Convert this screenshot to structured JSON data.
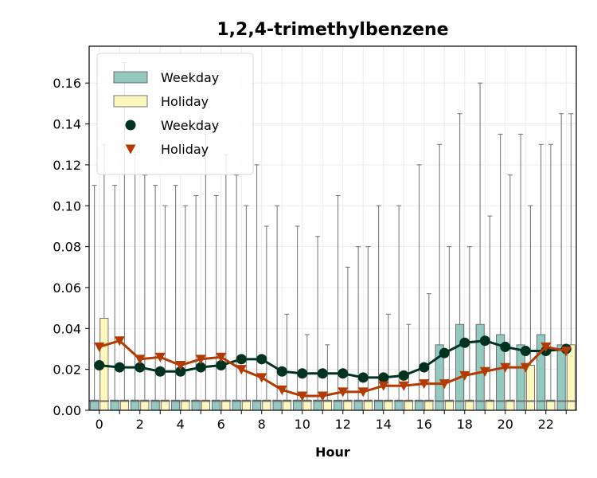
{
  "chart_data": {
    "type": "bar",
    "title": "1,2,4-trimethylbenzene",
    "xlabel": "Hour",
    "ylabel": "",
    "xlim": [
      -0.5,
      23.5
    ],
    "ylim": [
      0,
      0.178
    ],
    "x_ticks": [
      0,
      2,
      4,
      6,
      8,
      10,
      12,
      14,
      16,
      18,
      20,
      22
    ],
    "y_ticks": [
      0.0,
      0.02,
      0.04,
      0.06,
      0.08,
      0.1,
      0.12,
      0.14,
      0.16
    ],
    "y_tick_labels": [
      "0.00",
      "0.02",
      "0.04",
      "0.06",
      "0.08",
      "0.10",
      "0.12",
      "0.14",
      "0.16"
    ],
    "grid": true,
    "legend_position": "top-left",
    "legend": [
      {
        "label": "Weekday",
        "kind": "bar",
        "color": "#93c9bf"
      },
      {
        "label": "Holiday",
        "kind": "bar",
        "color": "#fbf7bd"
      },
      {
        "label": "Weekday",
        "kind": "circle",
        "color": "#00331f"
      },
      {
        "label": "Holiday",
        "kind": "triangle",
        "color": "#b33a00"
      }
    ],
    "colors": {
      "weekday_bar": "#93c9bf",
      "holiday_bar": "#fbf7bd",
      "weekday_line": "#00331f",
      "holiday_line": "#b33a00",
      "whisker": "#6f6f6f"
    },
    "categories": [
      0,
      1,
      2,
      3,
      4,
      5,
      6,
      7,
      8,
      9,
      10,
      11,
      12,
      13,
      14,
      15,
      16,
      17,
      18,
      19,
      20,
      21,
      22,
      23
    ],
    "bar_series": [
      {
        "name": "Weekday",
        "values": [
          0.005,
          0.005,
          0.005,
          0.005,
          0.005,
          0.005,
          0.005,
          0.005,
          0.005,
          0.005,
          0.005,
          0.005,
          0.005,
          0.005,
          0.005,
          0.005,
          0.005,
          0.032,
          0.042,
          0.042,
          0.037,
          0.032,
          0.037,
          0.032
        ],
        "whisker_high": [
          0.11,
          0.11,
          0.125,
          0.11,
          0.11,
          0.105,
          0.105,
          0.115,
          0.12,
          0.1,
          0.09,
          0.085,
          0.105,
          0.08,
          0.1,
          0.1,
          0.12,
          0.13,
          0.145,
          0.16,
          0.135,
          0.135,
          0.13,
          0.145
        ]
      },
      {
        "name": "Holiday",
        "values": [
          0.045,
          0.005,
          0.005,
          0.005,
          0.005,
          0.005,
          0.005,
          0.005,
          0.005,
          0.005,
          0.005,
          0.005,
          0.005,
          0.005,
          0.005,
          0.005,
          0.005,
          0.005,
          0.005,
          0.005,
          0.005,
          0.022,
          0.005,
          0.032
        ],
        "whisker_high": [
          0.13,
          0.17,
          0.115,
          0.1,
          0.1,
          0.135,
          0.125,
          0.1,
          0.09,
          0.047,
          0.037,
          0.032,
          0.07,
          0.08,
          0.047,
          0.042,
          0.057,
          0.08,
          0.08,
          0.095,
          0.115,
          0.1,
          0.13,
          0.145
        ]
      }
    ],
    "line_series": [
      {
        "name": "Weekday",
        "marker": "circle",
        "values": [
          0.022,
          0.021,
          0.021,
          0.019,
          0.019,
          0.021,
          0.022,
          0.025,
          0.025,
          0.019,
          0.018,
          0.018,
          0.018,
          0.016,
          0.016,
          0.017,
          0.021,
          0.028,
          0.033,
          0.034,
          0.031,
          0.029,
          0.029,
          0.03
        ]
      },
      {
        "name": "Holiday",
        "marker": "triangle-down",
        "values": [
          0.031,
          0.034,
          0.025,
          0.026,
          0.022,
          0.025,
          0.026,
          0.02,
          0.016,
          0.01,
          0.007,
          0.007,
          0.009,
          0.009,
          0.012,
          0.012,
          0.013,
          0.013,
          0.017,
          0.019,
          0.021,
          0.021,
          0.031,
          0.029
        ]
      }
    ]
  }
}
